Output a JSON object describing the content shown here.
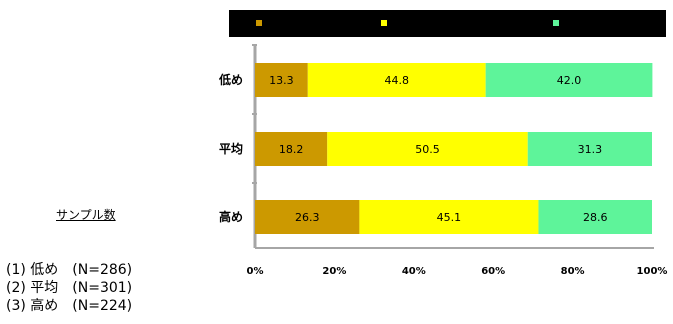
{
  "colors": {
    "low": "#cc9900",
    "mid": "#ffff00",
    "high": "#5ef49a",
    "legend_bg": "#000000",
    "axis": "#a6a6a6"
  },
  "chart_data": {
    "type": "bar",
    "orientation": "horizontal",
    "stacked": true,
    "categories": [
      "低め",
      "平均",
      "高め"
    ],
    "series": [
      {
        "values": [
          13.3,
          18.2,
          26.3
        ]
      },
      {
        "values": [
          44.8,
          50.5,
          45.1
        ]
      },
      {
        "values": [
          42.0,
          31.3,
          28.6
        ]
      }
    ],
    "x_ticks": [
      "0%",
      "20%",
      "40%",
      "60%",
      "80%",
      "100%"
    ],
    "xlim": [
      0,
      100
    ],
    "legend_position": "top",
    "grid": false
  },
  "sample": {
    "title": "サンプル数",
    "items": [
      "(1) 低め　(N=286)",
      "(2) 平均　(N=301)",
      "(3) 高め　(N=224)"
    ]
  }
}
